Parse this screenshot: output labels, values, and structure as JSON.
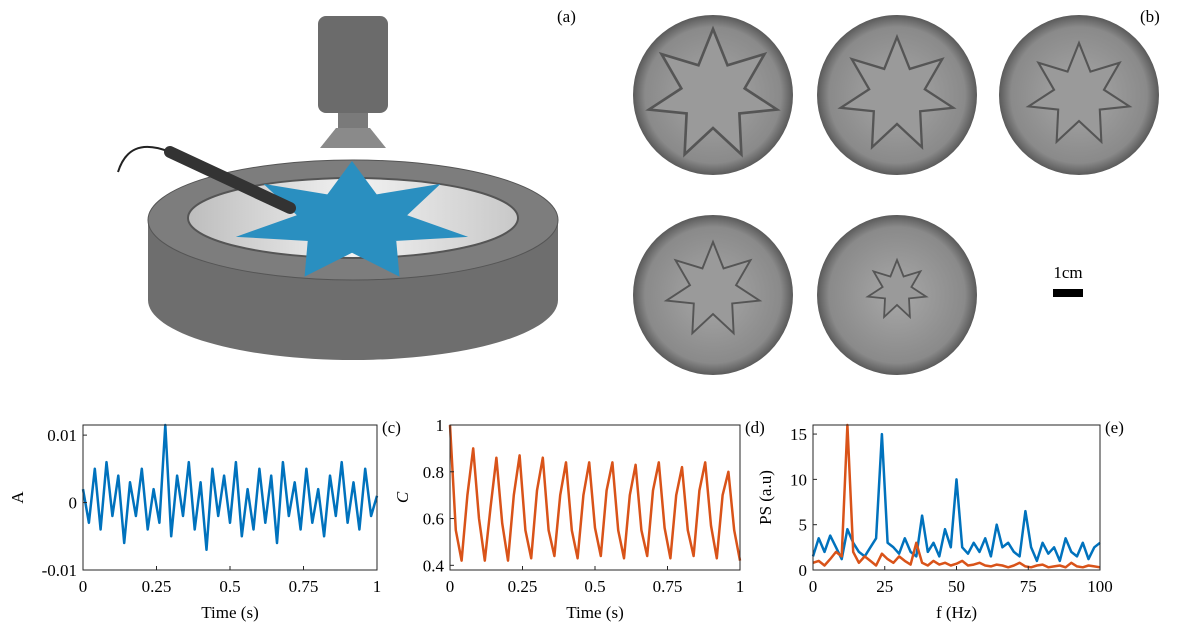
{
  "panels": {
    "a": "(a)",
    "b": "(b)",
    "scale_bar": "1cm"
  },
  "chart_data": [
    {
      "type": "line",
      "panel_label": "(c)",
      "xlabel": "Time (s)",
      "ylabel": "A",
      "xlim": [
        0,
        1
      ],
      "ylim": [
        -0.01,
        0.0115
      ],
      "xticks": [
        0,
        0.25,
        0.5,
        0.75,
        1
      ],
      "yticks": [
        -0.01,
        0,
        0.01
      ],
      "x": [
        0,
        0.02,
        0.04,
        0.06,
        0.08,
        0.1,
        0.12,
        0.14,
        0.16,
        0.18,
        0.2,
        0.22,
        0.24,
        0.26,
        0.28,
        0.3,
        0.32,
        0.34,
        0.36,
        0.38,
        0.4,
        0.42,
        0.44,
        0.46,
        0.48,
        0.5,
        0.52,
        0.54,
        0.56,
        0.58,
        0.6,
        0.62,
        0.64,
        0.66,
        0.68,
        0.7,
        0.72,
        0.74,
        0.76,
        0.78,
        0.8,
        0.82,
        0.84,
        0.86,
        0.88,
        0.9,
        0.92,
        0.94,
        0.96,
        0.98,
        1
      ],
      "series": [
        {
          "color": "#0072bd",
          "values": [
            0.002,
            -0.003,
            0.005,
            -0.004,
            0.006,
            -0.002,
            0.004,
            -0.006,
            0.003,
            -0.002,
            0.005,
            -0.004,
            0.002,
            -0.003,
            0.0115,
            -0.005,
            0.004,
            -0.002,
            0.006,
            -0.004,
            0.003,
            -0.007,
            0.005,
            -0.002,
            0.004,
            -0.003,
            0.006,
            -0.005,
            0.002,
            -0.004,
            0.005,
            -0.003,
            0.004,
            -0.006,
            0.006,
            -0.002,
            0.003,
            -0.004,
            0.005,
            -0.003,
            0.002,
            -0.005,
            0.004,
            -0.002,
            0.006,
            -0.003,
            0.003,
            -0.004,
            0.005,
            -0.002,
            0.001
          ]
        }
      ]
    },
    {
      "type": "line",
      "panel_label": "(d)",
      "xlabel": "Time (s)",
      "ylabel": "C",
      "xlim": [
        0,
        1
      ],
      "ylim": [
        0.38,
        1
      ],
      "xticks": [
        0,
        0.25,
        0.5,
        0.75,
        1
      ],
      "yticks": [
        0.4,
        0.6,
        0.8,
        1
      ],
      "x": [
        0,
        0.02,
        0.04,
        0.06,
        0.08,
        0.1,
        0.12,
        0.14,
        0.16,
        0.18,
        0.2,
        0.22,
        0.24,
        0.26,
        0.28,
        0.3,
        0.32,
        0.34,
        0.36,
        0.38,
        0.4,
        0.42,
        0.44,
        0.46,
        0.48,
        0.5,
        0.52,
        0.54,
        0.56,
        0.58,
        0.6,
        0.62,
        0.64,
        0.66,
        0.68,
        0.7,
        0.72,
        0.74,
        0.76,
        0.78,
        0.8,
        0.82,
        0.84,
        0.86,
        0.88,
        0.9,
        0.92,
        0.94,
        0.96,
        0.98,
        1
      ],
      "series": [
        {
          "color": "#d95319",
          "values": [
            1,
            0.55,
            0.42,
            0.7,
            0.9,
            0.6,
            0.42,
            0.65,
            0.86,
            0.58,
            0.42,
            0.7,
            0.87,
            0.55,
            0.43,
            0.72,
            0.86,
            0.55,
            0.44,
            0.7,
            0.84,
            0.55,
            0.43,
            0.7,
            0.84,
            0.56,
            0.44,
            0.72,
            0.84,
            0.55,
            0.43,
            0.7,
            0.83,
            0.55,
            0.44,
            0.72,
            0.84,
            0.56,
            0.43,
            0.7,
            0.82,
            0.55,
            0.44,
            0.72,
            0.84,
            0.57,
            0.43,
            0.7,
            0.8,
            0.55,
            0.42
          ]
        }
      ]
    },
    {
      "type": "line",
      "panel_label": "(e)",
      "xlabel": "f (Hz)",
      "ylabel": "PS (a.u)",
      "xlim": [
        0,
        100
      ],
      "ylim": [
        0,
        16
      ],
      "xticks": [
        0,
        25,
        50,
        75,
        100
      ],
      "yticks": [
        0,
        5,
        10,
        15
      ],
      "x": [
        0,
        2,
        4,
        6,
        8,
        10,
        12,
        14,
        16,
        18,
        20,
        22,
        24,
        26,
        28,
        30,
        32,
        34,
        36,
        38,
        40,
        42,
        44,
        46,
        48,
        50,
        52,
        54,
        56,
        58,
        60,
        62,
        64,
        66,
        68,
        70,
        72,
        74,
        76,
        78,
        80,
        82,
        84,
        86,
        88,
        90,
        92,
        94,
        96,
        98,
        100
      ],
      "series": [
        {
          "color": "#0072bd",
          "values": [
            1.5,
            3.5,
            2,
            3.8,
            2.5,
            1.2,
            4.5,
            3,
            2,
            1.5,
            2.5,
            3.5,
            15,
            3,
            2.5,
            1.8,
            3.5,
            2,
            1.5,
            6,
            2,
            3,
            1.5,
            4.5,
            2.5,
            10,
            2.5,
            1.8,
            3,
            2,
            3.5,
            1.5,
            5,
            2.5,
            3,
            2,
            1.5,
            6.5,
            2.5,
            1,
            3,
            1.8,
            2.5,
            1,
            3.5,
            2,
            1.5,
            3,
            1.2,
            2.5,
            3
          ]
        },
        {
          "color": "#d95319",
          "values": [
            0.8,
            1,
            0.5,
            1.2,
            2,
            1.5,
            16,
            2,
            0.8,
            1.5,
            1,
            0.5,
            1.8,
            1.2,
            0.8,
            1.5,
            1,
            0.6,
            3,
            0.8,
            0.5,
            1,
            0.6,
            0.8,
            0.5,
            0.7,
            1,
            0.5,
            0.6,
            0.8,
            0.5,
            0.4,
            0.6,
            0.5,
            0.3,
            0.5,
            0.8,
            0.4,
            0.3,
            0.5,
            0.6,
            0.3,
            0.4,
            0.5,
            0.3,
            0.8,
            0.4,
            0.3,
            0.5,
            0.4,
            0.3
          ]
        }
      ]
    }
  ]
}
